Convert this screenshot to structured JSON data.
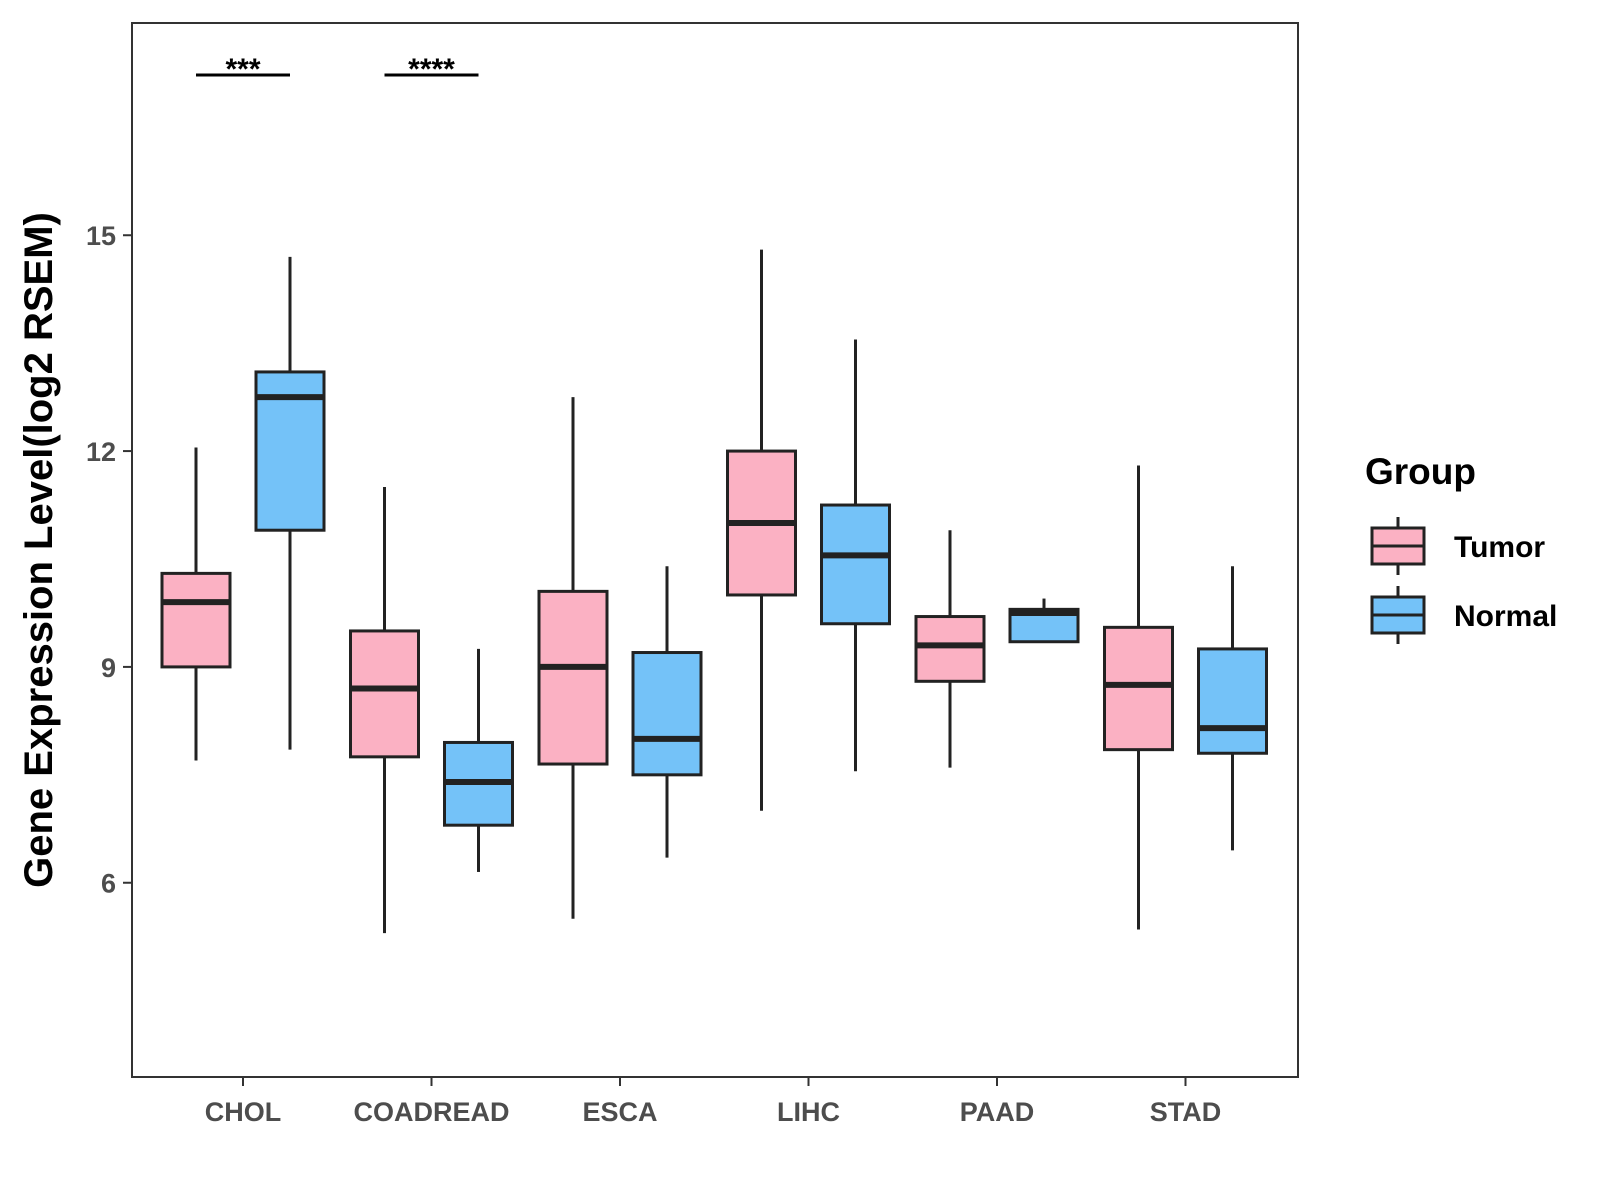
{
  "chart_data": {
    "type": "boxplot",
    "title": "",
    "xlabel": "",
    "ylabel": "Gene Expression Level(log2 RSEM)",
    "ylim": [
      3.3,
      17.95
    ],
    "yticks": [
      6,
      9,
      12,
      15
    ],
    "grid": false,
    "legend": {
      "title": "Group",
      "position": "right",
      "entries": [
        "Tumor",
        "Normal"
      ]
    },
    "categories": [
      "CHOL",
      "COADREAD",
      "ESCA",
      "LIHC",
      "PAAD",
      "STAD"
    ],
    "series": [
      {
        "name": "Tumor",
        "color": "#FBB1C3",
        "boxes": [
          {
            "min": 7.7,
            "q1": 9.0,
            "median": 9.9,
            "q3": 10.3,
            "max": 12.05
          },
          {
            "min": 5.3,
            "q1": 7.75,
            "median": 8.7,
            "q3": 9.5,
            "max": 11.5
          },
          {
            "min": 5.5,
            "q1": 7.65,
            "median": 9.0,
            "q3": 10.05,
            "max": 12.75
          },
          {
            "min": 7.0,
            "q1": 10.0,
            "median": 11.0,
            "q3": 12.0,
            "max": 14.8
          },
          {
            "min": 7.6,
            "q1": 8.8,
            "median": 9.3,
            "q3": 9.7,
            "max": 10.9
          },
          {
            "min": 5.35,
            "q1": 7.85,
            "median": 8.75,
            "q3": 9.55,
            "max": 11.8
          }
        ]
      },
      {
        "name": "Normal",
        "color": "#74C2F8",
        "boxes": [
          {
            "min": 7.85,
            "q1": 10.9,
            "median": 12.75,
            "q3": 13.1,
            "max": 14.7
          },
          {
            "min": 6.15,
            "q1": 6.8,
            "median": 7.4,
            "q3": 7.95,
            "max": 9.25
          },
          {
            "min": 6.35,
            "q1": 7.5,
            "median": 8.0,
            "q3": 9.2,
            "max": 10.4
          },
          {
            "min": 7.55,
            "q1": 9.6,
            "median": 10.55,
            "q3": 11.25,
            "max": 13.55
          },
          {
            "min": 9.35,
            "q1": 9.35,
            "median": 9.75,
            "q3": 9.8,
            "max": 9.95
          },
          {
            "min": 6.45,
            "q1": 7.8,
            "median": 8.15,
            "q3": 9.25,
            "max": 10.4
          }
        ]
      }
    ],
    "annotations": [
      {
        "category": "CHOL",
        "label": "***"
      },
      {
        "category": "COADREAD",
        "label": "****"
      }
    ]
  }
}
